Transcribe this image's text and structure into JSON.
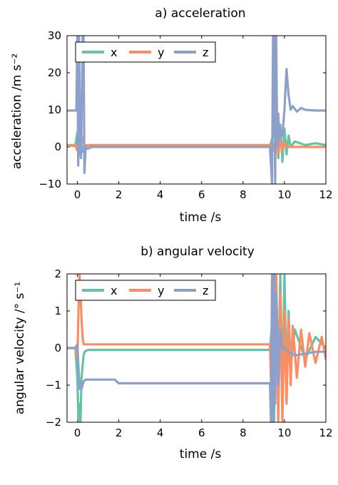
{
  "colors": {
    "x": "#66c2a5",
    "y": "#fc8d62",
    "z": "#8da0cb"
  },
  "chart_data": [
    {
      "type": "line",
      "title": "a) acceleration",
      "xlabel": "time /s",
      "ylabel": "acceleration /m s⁻²",
      "xlim": [
        -0.5,
        12
      ],
      "ylim": [
        -10,
        30
      ],
      "xticks": [
        "0",
        "2",
        "4",
        "6",
        "8",
        "10",
        "12"
      ],
      "yticks": [
        "−10",
        "0",
        "10",
        "20",
        "30"
      ],
      "legend": "top-left",
      "series": [
        {
          "name": "x",
          "x": [
            -0.5,
            -0.1,
            0.0,
            0.05,
            0.12,
            0.2,
            0.3,
            0.4,
            0.6,
            2,
            4,
            6,
            8,
            9.3,
            9.45,
            9.6,
            9.7,
            9.8,
            9.9,
            10.0,
            10.1,
            10.2,
            10.3,
            10.5,
            11,
            11.5,
            12
          ],
          "y": [
            0.3,
            0.3,
            4,
            -3,
            3,
            0.5,
            -1.5,
            0.5,
            0.2,
            0.2,
            0.2,
            0.2,
            0.2,
            0.2,
            3,
            8,
            -3,
            6,
            -4,
            5,
            -2,
            3,
            0,
            1.5,
            0.5,
            1,
            0.5
          ]
        },
        {
          "name": "y",
          "x": [
            -0.5,
            -0.1,
            0.0,
            0.1,
            0.2,
            0.3,
            0.4,
            0.6,
            2,
            4,
            6,
            8,
            9.3,
            9.45,
            9.6,
            9.7,
            9.8,
            9.9,
            10.0,
            10.2,
            10.5,
            11,
            11.5,
            12
          ],
          "y": [
            0.5,
            0.5,
            -1,
            2,
            3,
            1,
            0.3,
            0.5,
            0.5,
            0.5,
            0.5,
            0.5,
            0.5,
            -1,
            3,
            -2,
            2,
            -1,
            1,
            0,
            0,
            0,
            0,
            0
          ]
        },
        {
          "name": "z",
          "x": [
            -0.5,
            -0.05,
            0.0,
            0.04,
            0.08,
            0.12,
            0.18,
            0.25,
            0.3,
            0.34,
            0.4,
            0.5,
            0.7,
            2,
            4,
            6,
            8,
            9.3,
            9.4,
            9.45,
            9.5,
            9.55,
            9.6,
            9.65,
            9.7,
            9.75,
            9.8,
            9.9,
            10.0,
            10.1,
            10.2,
            10.3,
            10.4,
            10.6,
            10.8,
            11,
            11.5,
            12
          ],
          "y": [
            9.8,
            9.8,
            30,
            -5,
            30,
            5,
            -3,
            30,
            30,
            -7,
            0,
            -0.5,
            0,
            0,
            0,
            0,
            0,
            0,
            -10,
            30,
            30,
            -10,
            30,
            0,
            9,
            2,
            5,
            3,
            10,
            21,
            14,
            10,
            11,
            9.5,
            10.5,
            10,
            9.8,
            9.8
          ]
        }
      ]
    },
    {
      "type": "line",
      "title": "b) angular velocity",
      "xlabel": "time /s",
      "ylabel": "angular velocity /° s⁻¹",
      "xlim": [
        -0.5,
        12
      ],
      "ylim": [
        -2,
        2
      ],
      "xticks": [
        "0",
        "2",
        "4",
        "6",
        "8",
        "10",
        "12"
      ],
      "yticks": [
        "−2",
        "−1",
        "0",
        "1",
        "2"
      ],
      "legend": "top-left",
      "series": [
        {
          "name": "x",
          "x": [
            -0.5,
            -0.1,
            0.0,
            0.05,
            0.1,
            0.15,
            0.2,
            0.25,
            0.3,
            0.35,
            0.5,
            1,
            2,
            4,
            6,
            8,
            9.3,
            9.45,
            9.5,
            9.6,
            9.7,
            9.8,
            9.9,
            10.0,
            10.1,
            10.2,
            10.3,
            10.5,
            11,
            11.5,
            12
          ],
          "y": [
            0,
            0,
            -0.8,
            -2,
            -1.5,
            -2,
            -0.8,
            -0.5,
            -0.2,
            -0.1,
            -0.05,
            -0.05,
            -0.05,
            -0.05,
            -0.05,
            -0.05,
            -0.05,
            1,
            -2,
            2,
            -1,
            2,
            -1.5,
            2,
            -1,
            1,
            -0.5,
            0.5,
            -0.3,
            0.3,
            0
          ]
        },
        {
          "name": "y",
          "x": [
            -0.5,
            -0.1,
            0.0,
            0.05,
            0.1,
            0.15,
            0.2,
            0.25,
            0.3,
            0.4,
            0.6,
            1,
            2,
            4,
            6,
            8,
            9.3,
            9.4,
            9.45,
            9.5,
            9.6,
            9.7,
            9.8,
            9.9,
            10.0,
            10.1,
            10.2,
            10.3,
            10.4,
            10.6,
            10.8,
            11,
            11.2,
            11.5,
            11.8,
            12
          ],
          "y": [
            0,
            0,
            -0.3,
            1,
            2,
            1.5,
            0.8,
            0.3,
            0.1,
            0.1,
            0.1,
            0.1,
            0.1,
            0.1,
            0.1,
            0.1,
            0.1,
            -2,
            2,
            -1,
            2,
            -2,
            1.5,
            -2,
            1,
            -1.5,
            0.8,
            -1,
            0.6,
            -0.8,
            0.5,
            -0.5,
            0.4,
            -0.4,
            0.3,
            -0.3
          ]
        },
        {
          "name": "z",
          "x": [
            -0.5,
            -0.1,
            0.0,
            0.05,
            0.1,
            0.15,
            0.2,
            0.3,
            0.4,
            0.6,
            1,
            1.5,
            1.8,
            2,
            4,
            6,
            8,
            9.3,
            9.35,
            9.4,
            9.45,
            9.5,
            9.55,
            9.6,
            9.7,
            9.8,
            9.9,
            10.0,
            10.2,
            10.5,
            11,
            11.5,
            12
          ],
          "y": [
            0,
            0,
            0.1,
            -0.5,
            -1.1,
            -0.9,
            -1.1,
            -0.9,
            -0.85,
            -0.85,
            -0.85,
            -0.85,
            -0.85,
            -0.95,
            -0.95,
            -0.95,
            -0.95,
            -0.95,
            -2,
            2,
            -2,
            2,
            -1.5,
            1.5,
            -1,
            0.5,
            0,
            0,
            -0.1,
            -0.2,
            -0.15,
            -0.1,
            -0.1
          ]
        }
      ]
    }
  ]
}
